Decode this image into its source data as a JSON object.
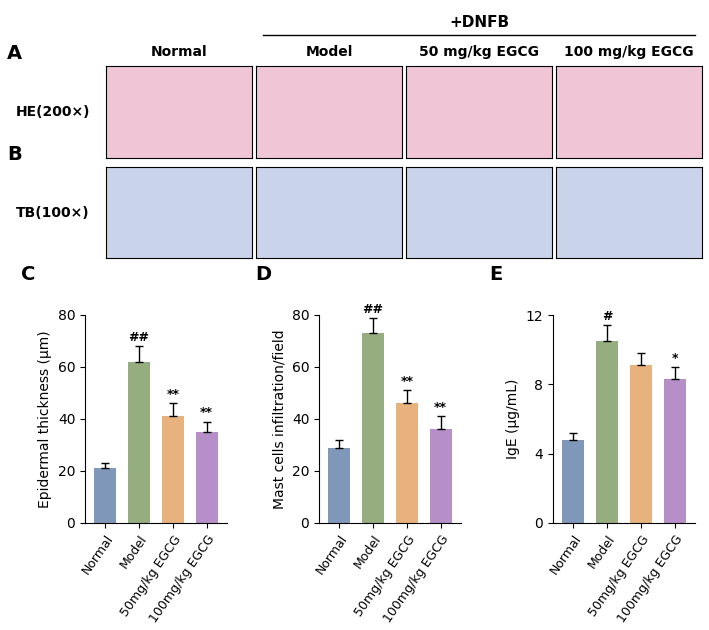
{
  "header": {
    "group_label": "+DNFB",
    "columns": [
      "Normal",
      "Model",
      "50 mg/kg EGCG",
      "100 mg/kg EGCG"
    ]
  },
  "image_rows": [
    {
      "panel": "A",
      "label": "HE(200×)",
      "color": "#f0c6d6"
    },
    {
      "panel": "B",
      "label": "TB(100×)",
      "color": "#c9d3ea"
    }
  ],
  "chart_data": [
    {
      "type": "bar",
      "panel": "C",
      "y_label": "Epidermal thickness (μm)",
      "categories": [
        "Normal",
        "Model",
        "50mg/kg EGCG",
        "100mg/kg EGCG"
      ],
      "values": [
        21,
        62,
        41,
        35
      ],
      "errors": [
        2,
        6,
        5,
        4
      ],
      "annotations": [
        null,
        "##",
        "**",
        "**"
      ],
      "colors": [
        "#7f97b8",
        "#95ad7f",
        "#e8b27f",
        "#b68ec8"
      ],
      "ylim": [
        0,
        80
      ],
      "yticks": [
        0,
        20,
        40,
        60,
        80
      ]
    },
    {
      "type": "bar",
      "panel": "D",
      "y_label": "Mast cells infiltration/field",
      "categories": [
        "Normal",
        "Model",
        "50mg/kg EGCG",
        "100mg/kg EGCG"
      ],
      "values": [
        29,
        73,
        46,
        36
      ],
      "errors": [
        3,
        6,
        5,
        5
      ],
      "annotations": [
        null,
        "##",
        "**",
        "**"
      ],
      "colors": [
        "#7f97b8",
        "#95ad7f",
        "#e8b27f",
        "#b68ec8"
      ],
      "ylim": [
        0,
        80
      ],
      "yticks": [
        0,
        20,
        40,
        60,
        80
      ]
    },
    {
      "type": "bar",
      "panel": "E",
      "y_label": "IgE (μg/mL)",
      "categories": [
        "Normal",
        "Model",
        "50mg/kg EGCG",
        "100mg/kg EGCG"
      ],
      "values": [
        4.8,
        10.5,
        9.1,
        8.3
      ],
      "errors": [
        0.4,
        0.9,
        0.7,
        0.7
      ],
      "annotations": [
        null,
        "#",
        null,
        "*"
      ],
      "colors": [
        "#7f97b8",
        "#95ad7f",
        "#e8b27f",
        "#b68ec8"
      ],
      "ylim": [
        0,
        12
      ],
      "yticks": [
        0,
        4,
        8,
        12
      ]
    }
  ]
}
